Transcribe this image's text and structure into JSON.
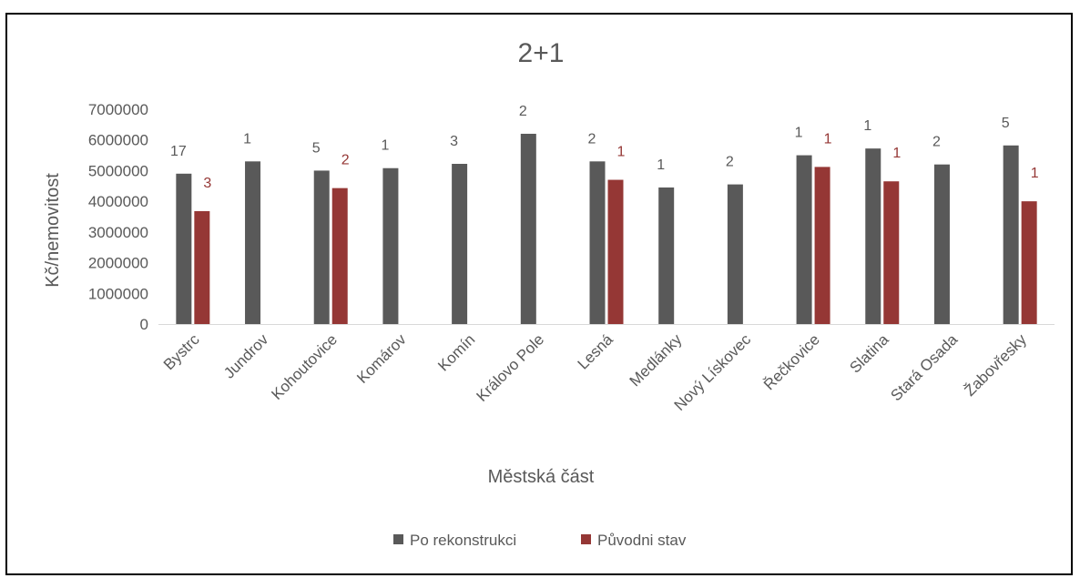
{
  "chart_data": {
    "type": "bar",
    "title": "2+1",
    "xlabel": "Městská část",
    "ylabel": "Kč/nemovitost",
    "ylim": [
      0,
      7000000
    ],
    "yticks": [
      "0",
      "1000000",
      "2000000",
      "3000000",
      "4000000",
      "5000000",
      "6000000",
      "7000000"
    ],
    "grid": false,
    "legend_position": "bottom",
    "categories": [
      "Bystrc",
      "Jundrov",
      "Kohoutovice",
      "Komárov",
      "Komín",
      "Královo Pole",
      "Lesná",
      "Medlánky",
      "Nový Lískovec",
      "Řečkovice",
      "Slatina",
      "Stará Osada",
      "Žabovřesky"
    ],
    "series": [
      {
        "name": "Po rekonstrukci",
        "color": "#595959",
        "values": [
          4900000,
          5300000,
          5000000,
          5080000,
          5220000,
          6200000,
          5300000,
          4450000,
          4550000,
          5500000,
          5720000,
          5200000,
          5820000
        ],
        "labels": [
          "17",
          "1",
          "5",
          "1",
          "3",
          "2",
          "2",
          "1",
          "2",
          "1",
          "1",
          "2",
          "5"
        ]
      },
      {
        "name": "Původni stav",
        "color": "#953735",
        "values": [
          3680000,
          null,
          4430000,
          null,
          null,
          null,
          4700000,
          null,
          null,
          5120000,
          4650000,
          null,
          4000000
        ],
        "labels": [
          "3",
          null,
          "2",
          null,
          null,
          null,
          "1",
          null,
          null,
          "1",
          "1",
          null,
          "1"
        ]
      }
    ]
  }
}
